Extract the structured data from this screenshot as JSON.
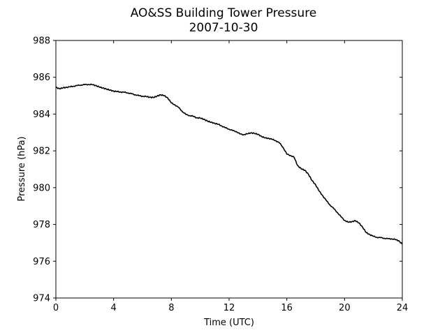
{
  "chart_data": {
    "type": "line",
    "title": "AO&SS Building Tower Pressure",
    "subtitle": "2007-10-30",
    "xlabel": "Time (UTC)",
    "ylabel": "Pressure (hPa)",
    "xlim": [
      0,
      24
    ],
    "ylim": [
      974,
      988
    ],
    "xticks": [
      0,
      4,
      8,
      12,
      16,
      20,
      24
    ],
    "yticks": [
      974,
      976,
      978,
      980,
      982,
      984,
      986,
      988
    ],
    "grid": false,
    "line_color": "#000000",
    "series": [
      {
        "x": [
          0,
          0.25,
          0.5,
          0.75,
          1.0,
          1.25,
          1.5,
          1.75,
          2.0,
          2.25,
          2.5,
          2.75,
          3.0,
          3.25,
          3.5,
          3.75,
          4.0,
          4.25,
          4.5,
          4.75,
          5.0,
          5.25,
          5.5,
          5.75,
          6.0,
          6.25,
          6.5,
          6.75,
          7.0,
          7.25,
          7.5,
          7.75,
          8.0,
          8.25,
          8.5,
          8.75,
          9.0,
          9.25,
          9.5,
          9.75,
          10.0,
          10.25,
          10.5,
          10.75,
          11.0,
          11.25,
          11.5,
          11.75,
          12.0,
          12.25,
          12.5,
          12.75,
          13.0,
          13.25,
          13.5,
          13.75,
          14.0,
          14.25,
          14.5,
          14.75,
          15.0,
          15.25,
          15.5,
          15.75,
          16.0,
          16.25,
          16.5,
          16.75,
          17.0,
          17.25,
          17.5,
          17.75,
          18.0,
          18.25,
          18.5,
          18.75,
          19.0,
          19.25,
          19.5,
          19.75,
          20.0,
          20.25,
          20.5,
          20.75,
          21.0,
          21.25,
          21.5,
          21.75,
          22.0,
          22.25,
          22.5,
          22.75,
          23.0,
          23.25,
          23.5,
          23.75,
          24.0
        ],
        "values": [
          985.45,
          985.38,
          985.42,
          985.46,
          985.48,
          985.52,
          985.55,
          985.58,
          985.6,
          985.61,
          985.6,
          985.56,
          985.47,
          985.42,
          985.36,
          985.3,
          985.25,
          985.22,
          985.2,
          985.18,
          985.15,
          985.1,
          985.05,
          985.0,
          984.97,
          984.95,
          984.92,
          984.9,
          984.97,
          985.05,
          985.0,
          984.88,
          984.6,
          984.5,
          984.36,
          984.15,
          983.98,
          983.92,
          983.88,
          983.8,
          983.78,
          983.72,
          983.62,
          983.55,
          983.5,
          983.44,
          983.35,
          983.25,
          983.18,
          983.1,
          983.05,
          982.92,
          982.88,
          982.92,
          982.98,
          982.95,
          982.9,
          982.78,
          982.7,
          982.68,
          982.62,
          982.55,
          982.42,
          982.18,
          981.82,
          981.75,
          981.65,
          981.2,
          981.02,
          980.95,
          980.72,
          980.38,
          980.15,
          979.8,
          979.55,
          979.28,
          979.05,
          978.86,
          978.65,
          978.42,
          978.22,
          978.12,
          978.15,
          978.2,
          978.08,
          977.85,
          977.55,
          977.45,
          977.35,
          977.3,
          977.28,
          977.25,
          977.22,
          977.22,
          977.18,
          977.12,
          976.92
        ]
      }
    ]
  }
}
